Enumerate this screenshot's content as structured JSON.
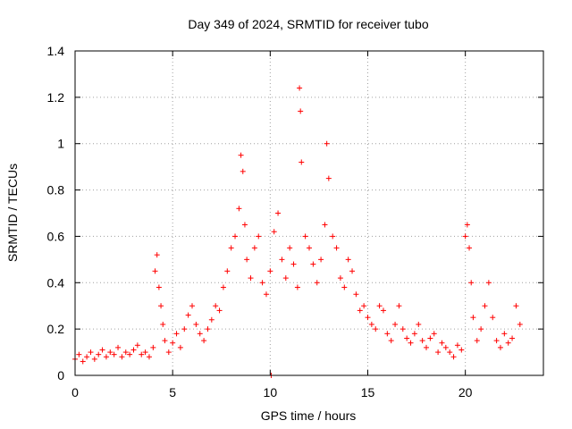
{
  "chart_data": {
    "type": "scatter",
    "title": "Day 349 of 2024, SRMTID for receiver tubo",
    "xlabel": "GPS time / hours",
    "ylabel": "SRMTID / TECUs",
    "xlim": [
      0,
      24
    ],
    "ylim": [
      0,
      1.4
    ],
    "x_ticks": [
      0,
      5,
      10,
      15,
      20
    ],
    "y_ticks": [
      0,
      0.2,
      0.4,
      0.6,
      0.8,
      1,
      1.2,
      1.4
    ],
    "x_tick_labels": [
      "0",
      "5",
      "10",
      "15",
      "20"
    ],
    "y_tick_labels": [
      "0",
      "0.2",
      "0.4",
      "0.6",
      "0.8",
      "1",
      "1.2",
      "1.4"
    ],
    "grid": true,
    "marker": "+",
    "color": "#ff0000",
    "series": [
      {
        "name": "SRMTID",
        "x": [
          0.0,
          0.2,
          0.4,
          0.6,
          0.8,
          1.0,
          1.2,
          1.4,
          1.6,
          1.8,
          2.0,
          2.2,
          2.4,
          2.6,
          2.8,
          3.0,
          3.2,
          3.4,
          3.6,
          3.8,
          4.0,
          4.1,
          4.2,
          4.3,
          4.4,
          4.5,
          4.6,
          4.8,
          5.0,
          5.2,
          5.4,
          5.6,
          5.8,
          6.0,
          6.2,
          6.4,
          6.6,
          6.8,
          7.0,
          7.2,
          7.4,
          7.6,
          7.8,
          8.0,
          8.2,
          8.4,
          8.5,
          8.6,
          8.7,
          8.8,
          9.0,
          9.2,
          9.4,
          9.6,
          9.8,
          10.0,
          10.05,
          10.2,
          10.4,
          10.6,
          10.8,
          11.0,
          11.2,
          11.4,
          11.5,
          11.55,
          11.6,
          11.8,
          12.0,
          12.2,
          12.4,
          12.6,
          12.8,
          12.9,
          13.0,
          13.2,
          13.4,
          13.6,
          13.8,
          14.0,
          14.2,
          14.4,
          14.6,
          14.8,
          15.0,
          15.2,
          15.4,
          15.6,
          15.8,
          16.0,
          16.2,
          16.4,
          16.6,
          16.8,
          17.0,
          17.2,
          17.4,
          17.6,
          17.8,
          18.0,
          18.2,
          18.4,
          18.6,
          18.8,
          19.0,
          19.2,
          19.4,
          19.6,
          19.8,
          20.0,
          20.1,
          20.2,
          20.3,
          20.4,
          20.6,
          20.8,
          21.0,
          21.2,
          21.4,
          21.6,
          21.8,
          22.0,
          22.2,
          22.4,
          22.6,
          22.8
        ],
        "y": [
          0.07,
          0.09,
          0.06,
          0.08,
          0.1,
          0.07,
          0.09,
          0.11,
          0.08,
          0.1,
          0.09,
          0.12,
          0.08,
          0.1,
          0.09,
          0.11,
          0.13,
          0.09,
          0.1,
          0.08,
          0.12,
          0.45,
          0.52,
          0.38,
          0.3,
          0.22,
          0.15,
          0.1,
          0.14,
          0.18,
          0.12,
          0.2,
          0.26,
          0.3,
          0.22,
          0.18,
          0.15,
          0.2,
          0.24,
          0.3,
          0.28,
          0.38,
          0.45,
          0.55,
          0.6,
          0.72,
          0.95,
          0.88,
          0.65,
          0.5,
          0.42,
          0.55,
          0.6,
          0.4,
          0.35,
          0.45,
          0.0,
          0.62,
          0.7,
          0.5,
          0.42,
          0.55,
          0.48,
          0.38,
          1.24,
          1.14,
          0.92,
          0.6,
          0.55,
          0.48,
          0.4,
          0.5,
          0.65,
          1.0,
          0.85,
          0.6,
          0.55,
          0.42,
          0.38,
          0.5,
          0.45,
          0.35,
          0.28,
          0.3,
          0.25,
          0.22,
          0.2,
          0.3,
          0.28,
          0.18,
          0.15,
          0.22,
          0.3,
          0.2,
          0.16,
          0.14,
          0.18,
          0.22,
          0.15,
          0.12,
          0.16,
          0.18,
          0.1,
          0.14,
          0.12,
          0.1,
          0.08,
          0.13,
          0.11,
          0.6,
          0.65,
          0.55,
          0.4,
          0.25,
          0.15,
          0.2,
          0.3,
          0.4,
          0.25,
          0.15,
          0.12,
          0.18,
          0.14,
          0.16,
          0.3,
          0.22
        ]
      }
    ]
  }
}
